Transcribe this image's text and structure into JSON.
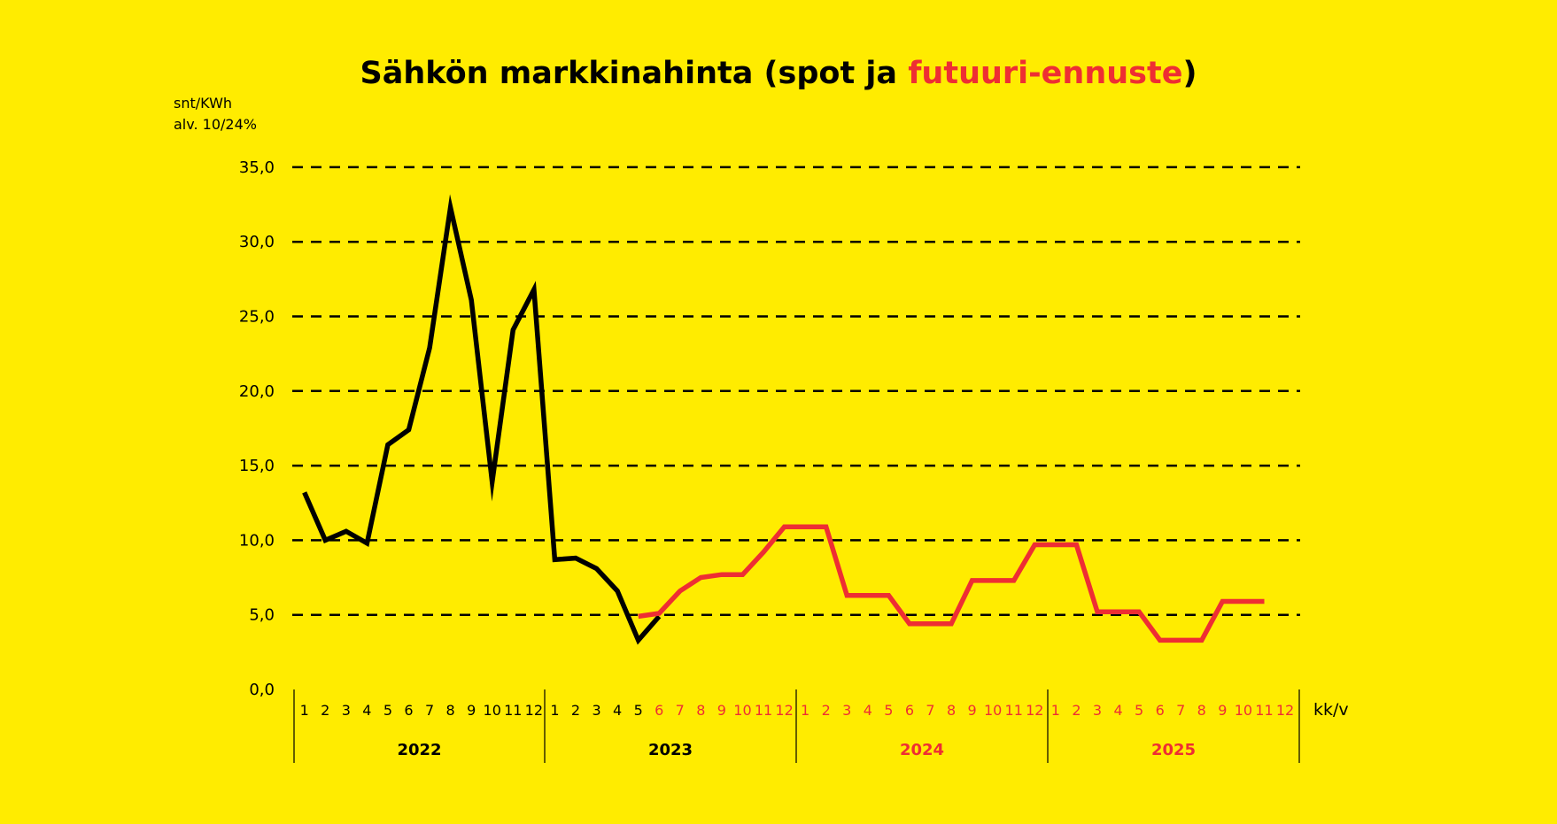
{
  "colors": {
    "background": "#FFEC00",
    "spot": "#000000",
    "forecast": "#EE2E33",
    "text": "#000000"
  },
  "chart_data": {
    "type": "line",
    "title": {
      "prefix": "Sähkön markkinahinta (spot ja ",
      "highlight": "futuuri-ennuste",
      "suffix": ")"
    },
    "ylabel_line1": "snt/KWh",
    "ylabel_line2": "alv. 10/24%",
    "xlabel": "kk/v",
    "ylim": [
      0,
      35
    ],
    "yticks": [
      "0,0",
      "5,0",
      "10,0",
      "15,0",
      "20,0",
      "25,0",
      "30,0",
      "35,0"
    ],
    "ytick_values": [
      0,
      5,
      10,
      15,
      20,
      25,
      30,
      35
    ],
    "grid": "dashed horizontal",
    "years": [
      {
        "label": "2022",
        "kind": "spot"
      },
      {
        "label": "2023",
        "kind": "spot"
      },
      {
        "label": "2024",
        "kind": "forecast"
      },
      {
        "label": "2025",
        "kind": "forecast"
      }
    ],
    "month_labels": [
      "1",
      "2",
      "3",
      "4",
      "5",
      "6",
      "7",
      "8",
      "9",
      "10",
      "11",
      "12"
    ],
    "forecast_starts_index": 17,
    "series": [
      {
        "kind": "spot",
        "values": [
          13.2,
          10.0,
          10.6,
          9.8,
          16.4,
          17.4,
          22.9,
          32.3,
          26.1,
          13.9,
          24.1,
          26.8,
          8.7,
          8.8,
          8.1,
          6.6,
          3.3,
          4.9
        ]
      },
      {
        "kind": "forecast",
        "values": [
          4.9,
          5.1,
          6.6,
          7.5,
          7.7,
          7.7,
          9.2,
          10.9,
          10.9,
          10.9,
          6.3,
          6.3,
          6.3,
          4.4,
          4.4,
          4.4,
          7.3,
          7.3,
          7.3,
          9.7,
          9.7,
          9.7,
          5.2,
          5.2,
          5.2,
          3.3,
          3.3,
          3.3,
          5.9,
          5.9,
          5.9
        ]
      }
    ]
  }
}
